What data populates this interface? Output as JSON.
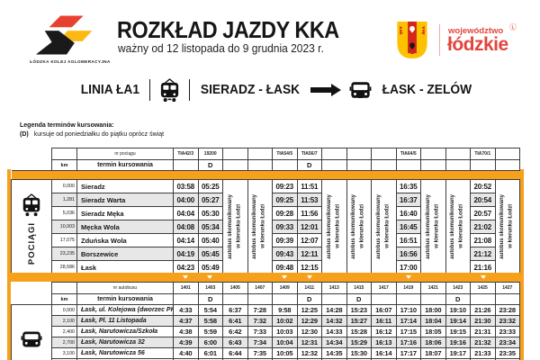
{
  "colors": {
    "orange": "#F7A01B",
    "brand_red": "#E2453C",
    "row_alt": "#E7E7E7",
    "border": "#3C3C3C"
  },
  "header": {
    "logo_caption": "ŁÓDZKA KOLEJ AGLOMERACYJNA",
    "title": "ROZKŁAD JAZDY KKA",
    "subtitle": "ważny od 12 listopada do 9 grudnia 2023 r.",
    "region_small": "województwo",
    "region_big": "łódzkie",
    "region_mark": "Ⓛ"
  },
  "banner": {
    "line_label": "LINIA ŁA1",
    "segment_train": "SIERADZ - ŁASK",
    "segment_bus": "ŁASK - ZELÓW"
  },
  "legend": {
    "title": "Legenda terminów kursowania:",
    "code": "(D)",
    "desc": "kursuje od poniedziałku do piątku oprócz świąt"
  },
  "train_table": {
    "section_label": "POCIĄGI",
    "header_number_label": "nr pociągu",
    "header_km_label": "km",
    "header_termin_label": "termin kursowania",
    "note_line1": "autobus skomunikowany",
    "note_line2": "w kierunku Łodzi",
    "columns": [
      {
        "kind": "time",
        "number": "TłA42/3",
        "termin": ""
      },
      {
        "kind": "time",
        "number": "19200",
        "termin": "D"
      },
      {
        "kind": "note"
      },
      {
        "kind": "note"
      },
      {
        "kind": "time",
        "number": "TłA54/5",
        "termin": ""
      },
      {
        "kind": "time",
        "number": "TłA56/7",
        "termin": "D"
      },
      {
        "kind": "note"
      },
      {
        "kind": "note"
      },
      {
        "kind": "note"
      },
      {
        "kind": "time",
        "number": "TłA64/5",
        "termin": ""
      },
      {
        "kind": "note"
      },
      {
        "kind": "note"
      },
      {
        "kind": "time",
        "number": "TłA70/1",
        "termin": ""
      },
      {
        "kind": "note"
      }
    ],
    "rows": [
      {
        "km": "0,000",
        "station": "Sieradz",
        "times": [
          "03:58",
          "05:25",
          "09:23",
          "11:51",
          "16:35",
          "20:52"
        ]
      },
      {
        "km": "1,281",
        "station": "Sieradz Warta",
        "times": [
          "04:00",
          "05:27",
          "09:25",
          "11:53",
          "16:37",
          "20:54"
        ]
      },
      {
        "km": "5,036",
        "station": "Sieradz Męka",
        "times": [
          "04:04",
          "05:30",
          "09:28",
          "11:56",
          "16:40",
          "20:57"
        ]
      },
      {
        "km": "10,003",
        "station": "Męcka Wola",
        "times": [
          "04:08",
          "05:34",
          "09:33",
          "12:01",
          "16:45",
          "21:02"
        ]
      },
      {
        "km": "17,075",
        "station": "Zduńska Wola",
        "times": [
          "04:14",
          "05:40",
          "09:39",
          "12:07",
          "16:51",
          "21:08"
        ]
      },
      {
        "km": "23,235",
        "station": "Borszewice",
        "times": [
          "04:19",
          "05:45",
          "09:43",
          "12:11",
          "16:56",
          "21:12"
        ]
      },
      {
        "km": "28,586",
        "station": "Łask",
        "times": [
          "04:23",
          "05:49",
          "09:48",
          "12:15",
          "17:00",
          "21:16"
        ]
      }
    ]
  },
  "bus_table": {
    "header_number_label": "nr autobusu",
    "header_km_label": "km",
    "header_termin_label": "termin kursowania",
    "columns": [
      {
        "kind": "time",
        "number": "1401",
        "termin": ""
      },
      {
        "kind": "time",
        "number": "1403",
        "termin": "D"
      },
      {
        "kind": "time",
        "number": "1405",
        "termin": ""
      },
      {
        "kind": "time",
        "number": "1407",
        "termin": ""
      },
      {
        "kind": "time",
        "number": "1409",
        "termin": ""
      },
      {
        "kind": "time",
        "number": "1411",
        "termin": "D"
      },
      {
        "kind": "time",
        "number": "1413",
        "termin": ""
      },
      {
        "kind": "time",
        "number": "1415",
        "termin": "D"
      },
      {
        "kind": "time",
        "number": "1417",
        "termin": ""
      },
      {
        "kind": "time",
        "number": "1419",
        "termin": ""
      },
      {
        "kind": "time",
        "number": "1421",
        "termin": ""
      },
      {
        "kind": "time",
        "number": "1423",
        "termin": "D"
      },
      {
        "kind": "time",
        "number": "1425",
        "termin": ""
      },
      {
        "kind": "time",
        "number": "1427",
        "termin": ""
      }
    ],
    "rows": [
      {
        "km": "0,000",
        "station": "Łask, ul. Kolejowa (dworzec PKP)",
        "times": [
          "4:33",
          "5:54",
          "6:37",
          "7:28",
          "9:58",
          "12:25",
          "14:28",
          "15:23",
          "16:07",
          "17:10",
          "18:00",
          "19:10",
          "21:26",
          "23:28"
        ]
      },
      {
        "km": "2,100",
        "station": "Łask, Pl. 11 Listopada",
        "times": [
          "4:37",
          "5:58",
          "6:41",
          "7:32",
          "10:02",
          "12:29",
          "14:32",
          "15:27",
          "16:11",
          "17:14",
          "18:04",
          "19:14",
          "21:30",
          "23:32"
        ]
      },
      {
        "km": "2,400",
        "station": "Łask, Narutowicza/Szkoła",
        "times": [
          "4:38",
          "5:59",
          "6:42",
          "7:33",
          "10:03",
          "12:30",
          "14:33",
          "15:28",
          "16:12",
          "17:15",
          "18:05",
          "19:15",
          "21:31",
          "23:33"
        ]
      },
      {
        "km": "2,700",
        "station": "Łask, Narutowicza 32",
        "times": [
          "4:39",
          "6:00",
          "6:43",
          "7:34",
          "10:04",
          "12:31",
          "14:34",
          "15:29",
          "16:13",
          "17:16",
          "18:06",
          "19:16",
          "21:32",
          "23:34"
        ]
      },
      {
        "km": "3,100",
        "station": "Łask, Narutowicza 56",
        "times": [
          "4:40",
          "6:01",
          "6:44",
          "7:35",
          "10:05",
          "12:32",
          "14:35",
          "15:30",
          "16:14",
          "17:17",
          "18:07",
          "19:17",
          "21:33",
          "23:35"
        ]
      }
    ]
  }
}
